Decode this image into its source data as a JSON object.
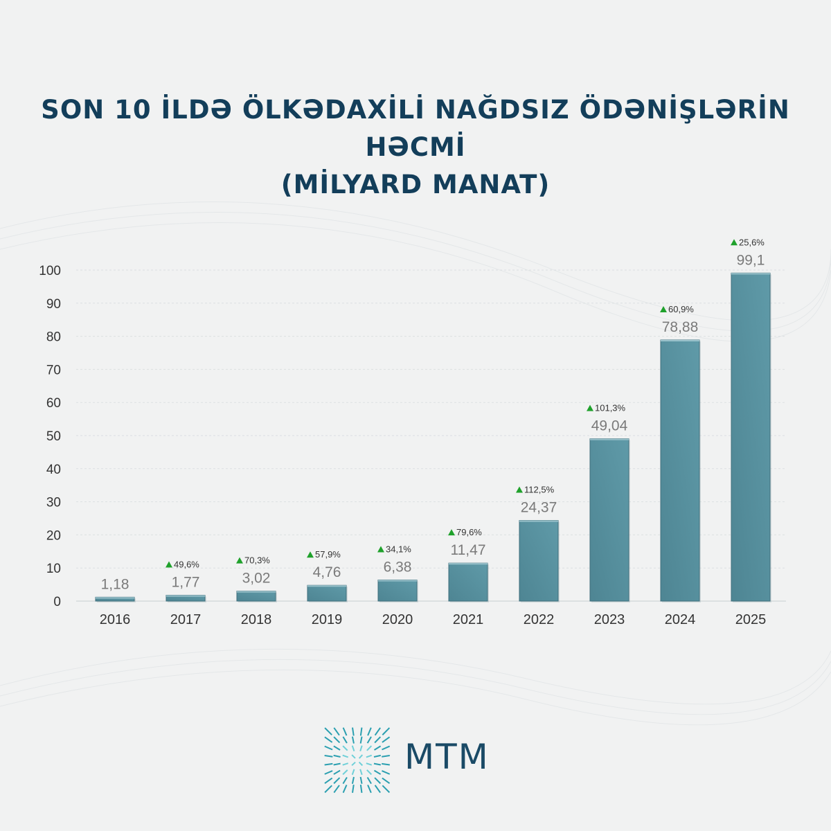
{
  "title": {
    "line1": "SON 10 İLDƏ ÖLKƏDAXİLİ NAĞDSIZ ÖDƏNİŞLƏRİN HƏCMİ",
    "line2": "(MİLYARD MANAT)"
  },
  "chart_data": {
    "type": "bar",
    "categories": [
      "2016",
      "2017",
      "2018",
      "2019",
      "2020",
      "2021",
      "2022",
      "2023",
      "2024",
      "2025"
    ],
    "values": [
      1.18,
      1.77,
      3.02,
      4.76,
      6.38,
      11.47,
      24.37,
      49.04,
      78.88,
      99.1
    ],
    "value_labels": [
      "1,18",
      "1,77",
      "3,02",
      "4,76",
      "6,38",
      "11,47",
      "24,37",
      "49,04",
      "78,88",
      "99,1"
    ],
    "growth_labels": [
      "",
      "49,6%",
      "70,3%",
      "57,9%",
      "34,1%",
      "79,6%",
      "112,5%",
      "101,3%",
      "60,9%",
      "25,6%"
    ],
    "ylim": [
      0,
      100
    ],
    "yticks": [
      0,
      10,
      20,
      30,
      40,
      50,
      60,
      70,
      80,
      90,
      100
    ],
    "grid": true,
    "colors": {
      "bar": "#5f9aa8",
      "bar_dark": "#4e8593",
      "growth_arrow": "#1fa12b",
      "value_label": "#7a7a7a",
      "axis_label": "#333333",
      "title": "#133e5a"
    }
  },
  "logo": {
    "text": "MTM",
    "icon": "mtm-starburst-icon"
  }
}
